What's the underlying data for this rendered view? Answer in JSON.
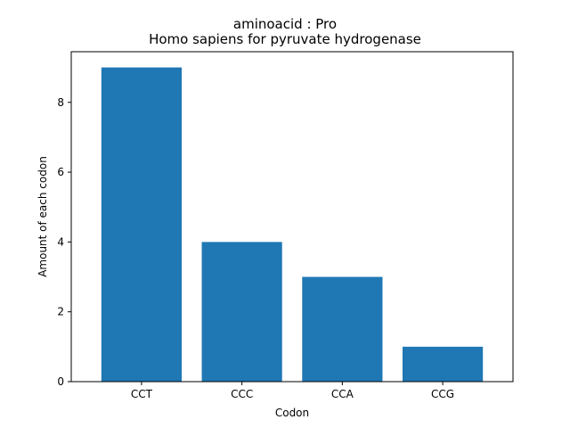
{
  "chart_data": {
    "type": "bar",
    "title": "aminoacid : Pro",
    "subtitle": "Homo sapiens for pyruvate hydrogenase",
    "xlabel": "Codon",
    "ylabel": "Amount of each codon",
    "categories": [
      "CCT",
      "CCC",
      "CCA",
      "CCG"
    ],
    "values": [
      9,
      4,
      3,
      1
    ],
    "ylim": [
      0,
      9.45
    ],
    "yticks": [
      0,
      2,
      4,
      6,
      8
    ],
    "bar_color": "#1f77b4",
    "grid": false,
    "legend": "none"
  }
}
